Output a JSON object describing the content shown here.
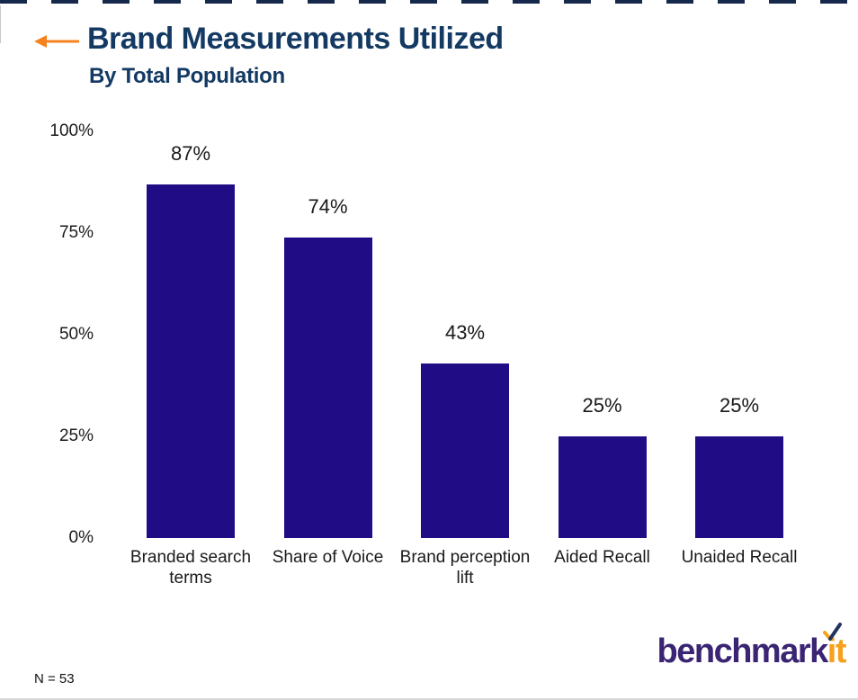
{
  "header": {
    "title": "Brand Measurements Utilized",
    "subtitle": "By Total Population",
    "title_color": "#143a63",
    "arrow_color": "#f5821f"
  },
  "chart_data": {
    "type": "bar",
    "title": "Brand Measurements Utilized",
    "subtitle": "By Total Population",
    "categories": [
      "Branded search terms",
      "Share of Voice",
      "Brand perception lift",
      "Aided Recall",
      "Unaided Recall"
    ],
    "values": [
      87,
      74,
      43,
      25,
      25
    ],
    "value_labels": [
      "87%",
      "74%",
      "43%",
      "25%",
      "25%"
    ],
    "y_ticks": [
      "100%",
      "75%",
      "50%",
      "25%",
      "0%"
    ],
    "y_tick_values": [
      100,
      75,
      50,
      25,
      0
    ],
    "ylim": [
      0,
      100
    ],
    "xlabel": "",
    "ylabel": "",
    "grid": false,
    "legend": false,
    "bar_color": "#200d86",
    "label_color": "#1a1a1a"
  },
  "footer": {
    "sample_note": "N = 53",
    "logo": {
      "part1": "benchmark",
      "part2": "it",
      "part1_color": "#3a2473",
      "part2_color": "#f6a01d",
      "check_color": "#20325f"
    }
  }
}
